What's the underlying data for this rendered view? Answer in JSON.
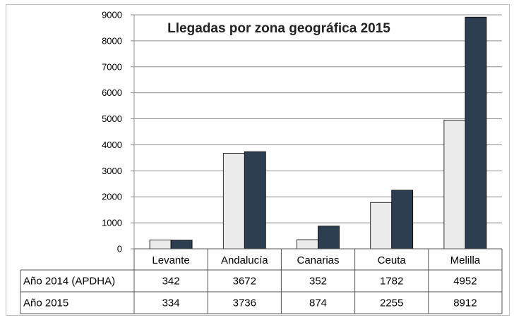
{
  "chart_data": {
    "type": "bar",
    "title": "Llegadas por zona geográfica 2015",
    "xlabel": "",
    "ylabel": "",
    "categories": [
      "Levante",
      "Andalucía",
      "Canarias",
      "Ceuta",
      "Melilla"
    ],
    "series": [
      {
        "name": "Año 2014 (APDHA)",
        "values": [
          342,
          3672,
          352,
          1782,
          4952
        ]
      },
      {
        "name": "Año 2015",
        "values": [
          334,
          3736,
          874,
          2255,
          8912
        ]
      }
    ],
    "ylim": [
      0,
      9000
    ],
    "yticks": [
      "0",
      "1000",
      "2000",
      "3000",
      "4000",
      "5000",
      "6000",
      "7000",
      "8000",
      "9000"
    ],
    "grid": true,
    "legend": "data table below the plot",
    "data_table": {
      "rows": [
        {
          "label": "Año 2014 (APDHA)",
          "cells": [
            "342",
            "3672",
            "352",
            "1782",
            "4952"
          ]
        },
        {
          "label": "Año 2015",
          "cells": [
            "334",
            "3736",
            "874",
            "2255",
            "8912"
          ]
        }
      ]
    },
    "colors": {
      "series_2014": "#ebebeb",
      "series_2015": "#2d3e50",
      "grid": "#8c8c8c",
      "bar_outline": "#000000"
    }
  }
}
